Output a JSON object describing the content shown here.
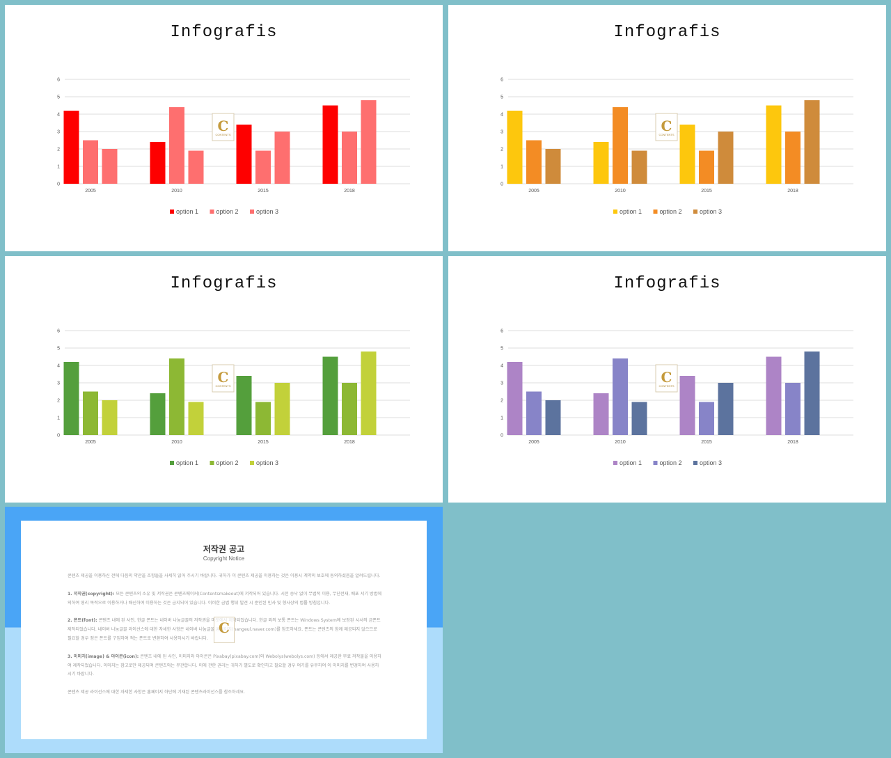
{
  "slides": [
    {
      "title": "Infografis",
      "colors": [
        "#fe0000",
        "#fe6f6f",
        "#fe6f6f"
      ]
    },
    {
      "title": "Infografis",
      "colors": [
        "#fdc70d",
        "#f38c24",
        "#cf8b3b"
      ]
    },
    {
      "title": "Infografis",
      "colors": [
        "#549f3c",
        "#8db834",
        "#c2d13a"
      ]
    },
    {
      "title": "Infografis",
      "colors": [
        "#ad84c6",
        "#8784c8",
        "#5c739e"
      ]
    }
  ],
  "watermark": {
    "letter": "C",
    "text": "CONTENTS"
  },
  "chart_data": [
    {
      "type": "bar",
      "categories": [
        "2005",
        "2010",
        "2015",
        "2018"
      ],
      "series": [
        {
          "name": "option 1",
          "values": [
            4.2,
            2.4,
            3.4,
            4.5
          ]
        },
        {
          "name": "option 2",
          "values": [
            2.5,
            4.4,
            1.9,
            3.0
          ]
        },
        {
          "name": "option 3",
          "values": [
            2.0,
            1.9,
            3.0,
            4.8
          ]
        }
      ],
      "yticks": [
        "0",
        "1",
        "2",
        "3",
        "4",
        "5",
        "6"
      ],
      "ylim": [
        0,
        6
      ],
      "grid": true,
      "legend": "bottom"
    },
    {
      "type": "bar",
      "categories": [
        "2005",
        "2010",
        "2015",
        "2018"
      ],
      "series": [
        {
          "name": "option 1",
          "values": [
            4.2,
            2.4,
            3.4,
            4.5
          ]
        },
        {
          "name": "option 2",
          "values": [
            2.5,
            4.4,
            1.9,
            3.0
          ]
        },
        {
          "name": "option 3",
          "values": [
            2.0,
            1.9,
            3.0,
            4.8
          ]
        }
      ],
      "yticks": [
        "0",
        "1",
        "2",
        "3",
        "4",
        "5",
        "6"
      ],
      "ylim": [
        0,
        6
      ],
      "grid": true,
      "legend": "bottom"
    },
    {
      "type": "bar",
      "categories": [
        "2005",
        "2010",
        "2015",
        "2018"
      ],
      "series": [
        {
          "name": "option 1",
          "values": [
            4.2,
            2.4,
            3.4,
            4.5
          ]
        },
        {
          "name": "option 2",
          "values": [
            2.5,
            4.4,
            1.9,
            3.0
          ]
        },
        {
          "name": "option 3",
          "values": [
            2.0,
            1.9,
            3.0,
            4.8
          ]
        }
      ],
      "yticks": [
        "0",
        "1",
        "2",
        "3",
        "4",
        "5",
        "6"
      ],
      "ylim": [
        0,
        6
      ],
      "grid": true,
      "legend": "bottom"
    },
    {
      "type": "bar",
      "categories": [
        "2005",
        "2010",
        "2015",
        "2018"
      ],
      "series": [
        {
          "name": "option 1",
          "values": [
            4.2,
            2.4,
            3.4,
            4.5
          ]
        },
        {
          "name": "option 2",
          "values": [
            2.5,
            4.4,
            1.9,
            3.0
          ]
        },
        {
          "name": "option 3",
          "values": [
            2.0,
            1.9,
            3.0,
            4.8
          ]
        }
      ],
      "yticks": [
        "0",
        "1",
        "2",
        "3",
        "4",
        "5",
        "6"
      ],
      "ylim": [
        0,
        6
      ],
      "grid": true,
      "legend": "bottom"
    }
  ],
  "notice": {
    "title": "저작권 공고",
    "subtitle": "Copyright Notice",
    "intro": "콘텐츠 제공을 이용하신 전에 다음의 약관을 조항들을 사세히 읽어 주시기 바랍니다. 귀하가 이 콘텐츠 제공을 이용하는 것은 이용시 계약의 보호에 동의하셨음을 알려드립니다.",
    "p1_head": "1. 저작권(copyright):",
    "p1_body": "모든 콘텐츠의 소유 및 저작권은 콘텐츠메이커(Contentsmakeout)에 저작되어 있습니다. 시전 승낙 없이 무법적 이용, 무단전재, 배포 서기 방법에 의하여 영리 목적으로 이용하거나 배신하여 이용하는 것은 금지되어 있습니다. 이러한 금법 행위 발견 시 준인된 민사 및 형사상의 법률 방침입니다.",
    "p2_head": "2. 폰트(font):",
    "p2_body": "콘텐츠 내에 된 사인, 한글 폰트는 네이버 나눔글꼴의 저작권을 마켓에서 제작되었습니다. 한글 외의 보통 폰트는 Windows System에 보장된 시서의 금폰트 제작되었습니다. 네이버 나눔글꼴 라이선스에 대한 자세한 사항은 네이버 나눔글꼴 홈페이지(hangeul.naver.com)를 참조하세요. 폰트는 콘텐츠의 함께 제공되지 않으므로 필요할 경우 정은 폰트를 구입하여 적는 폰트로 변환하여 사용하시기 바랍니다.",
    "p3_head": "3. 이미지(image) & 아이콘(icon):",
    "p3_body": "콘텐츠 내에 된 사인, 이미지와 아이콘은 Pixabay(pixabay.com)와 Webolys(webolys.com) 등에서 제공한 무료 저작물을 이용하여 제작되었습니다. 이미지는 참고로만 제공되며 콘텐츠와는 무관합니다. 이에 관한 권리는 귀하가 별도로 확인하고 필요할 경우 여기를 유무하여 이 이미지를 변경하여 사용하시기 바랍니다.",
    "outro": "콘텐츠 제공 라이선스에 대한 자세한 사항은 홈페이지 하단에 기재된 콘텐츠라이선스를 참조하세요."
  }
}
